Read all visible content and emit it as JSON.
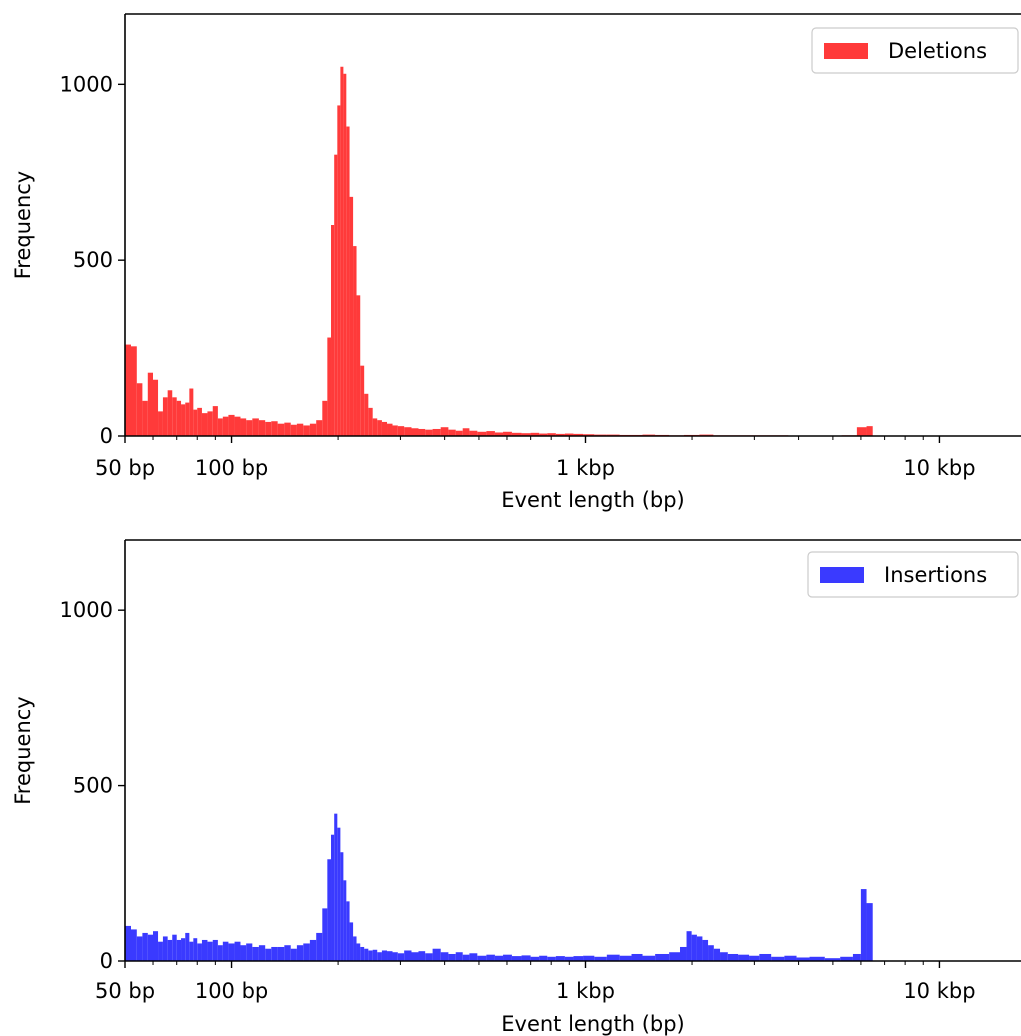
{
  "chart_data": [
    {
      "type": "bar",
      "subtype": "histogram",
      "xscale": "log",
      "xlim": [
        50,
        17000
      ],
      "ylim": [
        0,
        1200
      ],
      "xlabel": "Event length (bp)",
      "ylabel": "Frequency",
      "xticks": [
        {
          "value": 50,
          "label": "50 bp"
        },
        {
          "value": 100,
          "label": "100 bp"
        },
        {
          "value": 1000,
          "label": "1 kbp"
        },
        {
          "value": 10000,
          "label": "10 kbp"
        }
      ],
      "yticks": [
        {
          "value": 0,
          "label": "0"
        },
        {
          "value": 500,
          "label": "500"
        },
        {
          "value": 1000,
          "label": "1000"
        }
      ],
      "legend": {
        "position": "top-right",
        "label": "Deletions"
      },
      "series": [
        {
          "name": "Deletions",
          "color": "#ff3a3a",
          "bins": [
            {
              "x": 51,
              "y": 260
            },
            {
              "x": 53,
              "y": 255
            },
            {
              "x": 55,
              "y": 150
            },
            {
              "x": 57,
              "y": 100
            },
            {
              "x": 59,
              "y": 180
            },
            {
              "x": 61,
              "y": 160
            },
            {
              "x": 63,
              "y": 70
            },
            {
              "x": 65,
              "y": 110
            },
            {
              "x": 67,
              "y": 130
            },
            {
              "x": 69,
              "y": 110
            },
            {
              "x": 71,
              "y": 100
            },
            {
              "x": 73,
              "y": 90
            },
            {
              "x": 75,
              "y": 95
            },
            {
              "x": 77,
              "y": 135
            },
            {
              "x": 79,
              "y": 75
            },
            {
              "x": 81,
              "y": 80
            },
            {
              "x": 84,
              "y": 65
            },
            {
              "x": 87,
              "y": 70
            },
            {
              "x": 90,
              "y": 85
            },
            {
              "x": 93,
              "y": 50
            },
            {
              "x": 96,
              "y": 55
            },
            {
              "x": 100,
              "y": 60
            },
            {
              "x": 104,
              "y": 55
            },
            {
              "x": 108,
              "y": 50
            },
            {
              "x": 112,
              "y": 45
            },
            {
              "x": 117,
              "y": 50
            },
            {
              "x": 122,
              "y": 45
            },
            {
              "x": 127,
              "y": 40
            },
            {
              "x": 132,
              "y": 42
            },
            {
              "x": 138,
              "y": 35
            },
            {
              "x": 144,
              "y": 38
            },
            {
              "x": 150,
              "y": 32
            },
            {
              "x": 156,
              "y": 35
            },
            {
              "x": 163,
              "y": 30
            },
            {
              "x": 170,
              "y": 35
            },
            {
              "x": 177,
              "y": 45
            },
            {
              "x": 184,
              "y": 100
            },
            {
              "x": 189,
              "y": 280
            },
            {
              "x": 193,
              "y": 600
            },
            {
              "x": 197,
              "y": 800
            },
            {
              "x": 201,
              "y": 940
            },
            {
              "x": 205,
              "y": 1050
            },
            {
              "x": 209,
              "y": 1030
            },
            {
              "x": 213,
              "y": 880
            },
            {
              "x": 218,
              "y": 680
            },
            {
              "x": 223,
              "y": 540
            },
            {
              "x": 228,
              "y": 400
            },
            {
              "x": 234,
              "y": 200
            },
            {
              "x": 240,
              "y": 120
            },
            {
              "x": 247,
              "y": 80
            },
            {
              "x": 254,
              "y": 50
            },
            {
              "x": 262,
              "y": 45
            },
            {
              "x": 270,
              "y": 40
            },
            {
              "x": 280,
              "y": 35
            },
            {
              "x": 290,
              "y": 30
            },
            {
              "x": 300,
              "y": 28
            },
            {
              "x": 315,
              "y": 25
            },
            {
              "x": 330,
              "y": 22
            },
            {
              "x": 345,
              "y": 20
            },
            {
              "x": 360,
              "y": 18
            },
            {
              "x": 380,
              "y": 20
            },
            {
              "x": 400,
              "y": 25
            },
            {
              "x": 420,
              "y": 18
            },
            {
              "x": 440,
              "y": 15
            },
            {
              "x": 460,
              "y": 22
            },
            {
              "x": 480,
              "y": 15
            },
            {
              "x": 510,
              "y": 12
            },
            {
              "x": 540,
              "y": 14
            },
            {
              "x": 570,
              "y": 10
            },
            {
              "x": 600,
              "y": 12
            },
            {
              "x": 640,
              "y": 9
            },
            {
              "x": 680,
              "y": 8
            },
            {
              "x": 720,
              "y": 9
            },
            {
              "x": 760,
              "y": 7
            },
            {
              "x": 800,
              "y": 8
            },
            {
              "x": 850,
              "y": 6
            },
            {
              "x": 900,
              "y": 7
            },
            {
              "x": 950,
              "y": 6
            },
            {
              "x": 1020,
              "y": 5
            },
            {
              "x": 1100,
              "y": 4
            },
            {
              "x": 1200,
              "y": 4
            },
            {
              "x": 1300,
              "y": 3
            },
            {
              "x": 1400,
              "y": 3
            },
            {
              "x": 1500,
              "y": 4
            },
            {
              "x": 1650,
              "y": 3
            },
            {
              "x": 1800,
              "y": 2
            },
            {
              "x": 2000,
              "y": 3
            },
            {
              "x": 2200,
              "y": 4
            },
            {
              "x": 2400,
              "y": 2
            },
            {
              "x": 2700,
              "y": 2
            },
            {
              "x": 3000,
              "y": 2
            },
            {
              "x": 3500,
              "y": 2
            },
            {
              "x": 4000,
              "y": 1
            },
            {
              "x": 4500,
              "y": 1
            },
            {
              "x": 5000,
              "y": 1
            },
            {
              "x": 5600,
              "y": 2
            },
            {
              "x": 6100,
              "y": 25
            },
            {
              "x": 6350,
              "y": 28
            }
          ]
        }
      ]
    },
    {
      "type": "bar",
      "subtype": "histogram",
      "xscale": "log",
      "xlim": [
        50,
        17000
      ],
      "ylim": [
        0,
        1200
      ],
      "xlabel": "Event length (bp)",
      "ylabel": "Frequency",
      "xticks": [
        {
          "value": 50,
          "label": "50 bp"
        },
        {
          "value": 100,
          "label": "100 bp"
        },
        {
          "value": 1000,
          "label": "1 kbp"
        },
        {
          "value": 10000,
          "label": "10 kbp"
        }
      ],
      "yticks": [
        {
          "value": 0,
          "label": "0"
        },
        {
          "value": 500,
          "label": "500"
        },
        {
          "value": 1000,
          "label": "1000"
        }
      ],
      "legend": {
        "position": "top-right",
        "label": "Insertions"
      },
      "series": [
        {
          "name": "Insertions",
          "color": "#3a3aff",
          "bins": [
            {
              "x": 51,
              "y": 100
            },
            {
              "x": 53,
              "y": 90
            },
            {
              "x": 55,
              "y": 70
            },
            {
              "x": 57,
              "y": 80
            },
            {
              "x": 59,
              "y": 75
            },
            {
              "x": 61,
              "y": 85
            },
            {
              "x": 63,
              "y": 55
            },
            {
              "x": 65,
              "y": 70
            },
            {
              "x": 67,
              "y": 60
            },
            {
              "x": 69,
              "y": 75
            },
            {
              "x": 71,
              "y": 60
            },
            {
              "x": 73,
              "y": 65
            },
            {
              "x": 75,
              "y": 80
            },
            {
              "x": 77,
              "y": 55
            },
            {
              "x": 79,
              "y": 65
            },
            {
              "x": 81,
              "y": 50
            },
            {
              "x": 84,
              "y": 60
            },
            {
              "x": 87,
              "y": 55
            },
            {
              "x": 90,
              "y": 60
            },
            {
              "x": 93,
              "y": 45
            },
            {
              "x": 96,
              "y": 55
            },
            {
              "x": 100,
              "y": 50
            },
            {
              "x": 104,
              "y": 55
            },
            {
              "x": 108,
              "y": 45
            },
            {
              "x": 112,
              "y": 50
            },
            {
              "x": 117,
              "y": 40
            },
            {
              "x": 122,
              "y": 45
            },
            {
              "x": 127,
              "y": 35
            },
            {
              "x": 132,
              "y": 40
            },
            {
              "x": 138,
              "y": 40
            },
            {
              "x": 144,
              "y": 45
            },
            {
              "x": 150,
              "y": 35
            },
            {
              "x": 156,
              "y": 45
            },
            {
              "x": 163,
              "y": 50
            },
            {
              "x": 170,
              "y": 60
            },
            {
              "x": 177,
              "y": 80
            },
            {
              "x": 184,
              "y": 150
            },
            {
              "x": 189,
              "y": 290
            },
            {
              "x": 193,
              "y": 360
            },
            {
              "x": 197,
              "y": 420
            },
            {
              "x": 201,
              "y": 380
            },
            {
              "x": 205,
              "y": 310
            },
            {
              "x": 209,
              "y": 230
            },
            {
              "x": 213,
              "y": 170
            },
            {
              "x": 218,
              "y": 110
            },
            {
              "x": 223,
              "y": 70
            },
            {
              "x": 228,
              "y": 50
            },
            {
              "x": 234,
              "y": 40
            },
            {
              "x": 240,
              "y": 35
            },
            {
              "x": 247,
              "y": 30
            },
            {
              "x": 254,
              "y": 32
            },
            {
              "x": 262,
              "y": 25
            },
            {
              "x": 270,
              "y": 30
            },
            {
              "x": 280,
              "y": 28
            },
            {
              "x": 290,
              "y": 25
            },
            {
              "x": 300,
              "y": 22
            },
            {
              "x": 315,
              "y": 30
            },
            {
              "x": 330,
              "y": 25
            },
            {
              "x": 345,
              "y": 28
            },
            {
              "x": 360,
              "y": 22
            },
            {
              "x": 380,
              "y": 35
            },
            {
              "x": 400,
              "y": 25
            },
            {
              "x": 420,
              "y": 20
            },
            {
              "x": 440,
              "y": 25
            },
            {
              "x": 460,
              "y": 18
            },
            {
              "x": 480,
              "y": 22
            },
            {
              "x": 510,
              "y": 15
            },
            {
              "x": 540,
              "y": 18
            },
            {
              "x": 570,
              "y": 15
            },
            {
              "x": 600,
              "y": 18
            },
            {
              "x": 640,
              "y": 14
            },
            {
              "x": 680,
              "y": 16
            },
            {
              "x": 720,
              "y": 12
            },
            {
              "x": 760,
              "y": 15
            },
            {
              "x": 800,
              "y": 12
            },
            {
              "x": 850,
              "y": 14
            },
            {
              "x": 900,
              "y": 12
            },
            {
              "x": 950,
              "y": 14
            },
            {
              "x": 1020,
              "y": 15
            },
            {
              "x": 1100,
              "y": 12
            },
            {
              "x": 1200,
              "y": 18
            },
            {
              "x": 1300,
              "y": 15
            },
            {
              "x": 1400,
              "y": 20
            },
            {
              "x": 1500,
              "y": 15
            },
            {
              "x": 1650,
              "y": 20
            },
            {
              "x": 1800,
              "y": 25
            },
            {
              "x": 1900,
              "y": 40
            },
            {
              "x": 1960,
              "y": 85
            },
            {
              "x": 2030,
              "y": 75
            },
            {
              "x": 2100,
              "y": 70
            },
            {
              "x": 2180,
              "y": 60
            },
            {
              "x": 2260,
              "y": 45
            },
            {
              "x": 2350,
              "y": 35
            },
            {
              "x": 2450,
              "y": 25
            },
            {
              "x": 2600,
              "y": 20
            },
            {
              "x": 2800,
              "y": 18
            },
            {
              "x": 3000,
              "y": 15
            },
            {
              "x": 3200,
              "y": 20
            },
            {
              "x": 3500,
              "y": 12
            },
            {
              "x": 3800,
              "y": 15
            },
            {
              "x": 4100,
              "y": 10
            },
            {
              "x": 4500,
              "y": 12
            },
            {
              "x": 5000,
              "y": 8
            },
            {
              "x": 5500,
              "y": 12
            },
            {
              "x": 5900,
              "y": 20
            },
            {
              "x": 6100,
              "y": 205
            },
            {
              "x": 6350,
              "y": 165
            }
          ]
        }
      ]
    }
  ]
}
